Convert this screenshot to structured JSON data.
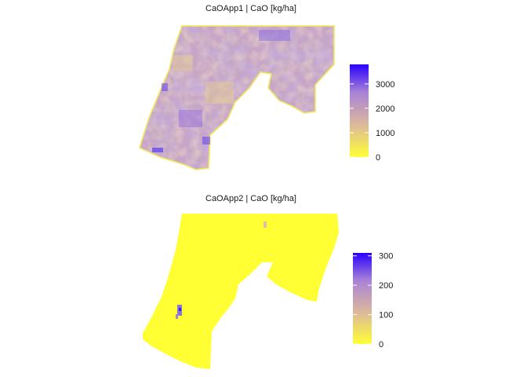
{
  "panels": [
    {
      "title": "CaOApp1 | CaO [kg/ha]",
      "legend": {
        "min": 0,
        "max": 3800,
        "ticks": [
          "0",
          "1000",
          "2000",
          "3000"
        ],
        "tick_values": [
          0,
          1000,
          2000,
          3000
        ],
        "colors": [
          "#ffff33",
          "#dcb89c",
          "#a882d7",
          "#2b00ff"
        ]
      },
      "fill_color": "#c6a5c7"
    },
    {
      "title": "CaOApp2 | CaO [kg/ha]",
      "legend": {
        "min": 0,
        "max": 310,
        "ticks": [
          "0",
          "100",
          "200",
          "300"
        ],
        "tick_values": [
          0,
          100,
          200,
          300
        ],
        "colors": [
          "#ffff33",
          "#dcb89c",
          "#a882d7",
          "#2b00ff"
        ]
      },
      "fill_color": "#ffff33"
    }
  ]
}
